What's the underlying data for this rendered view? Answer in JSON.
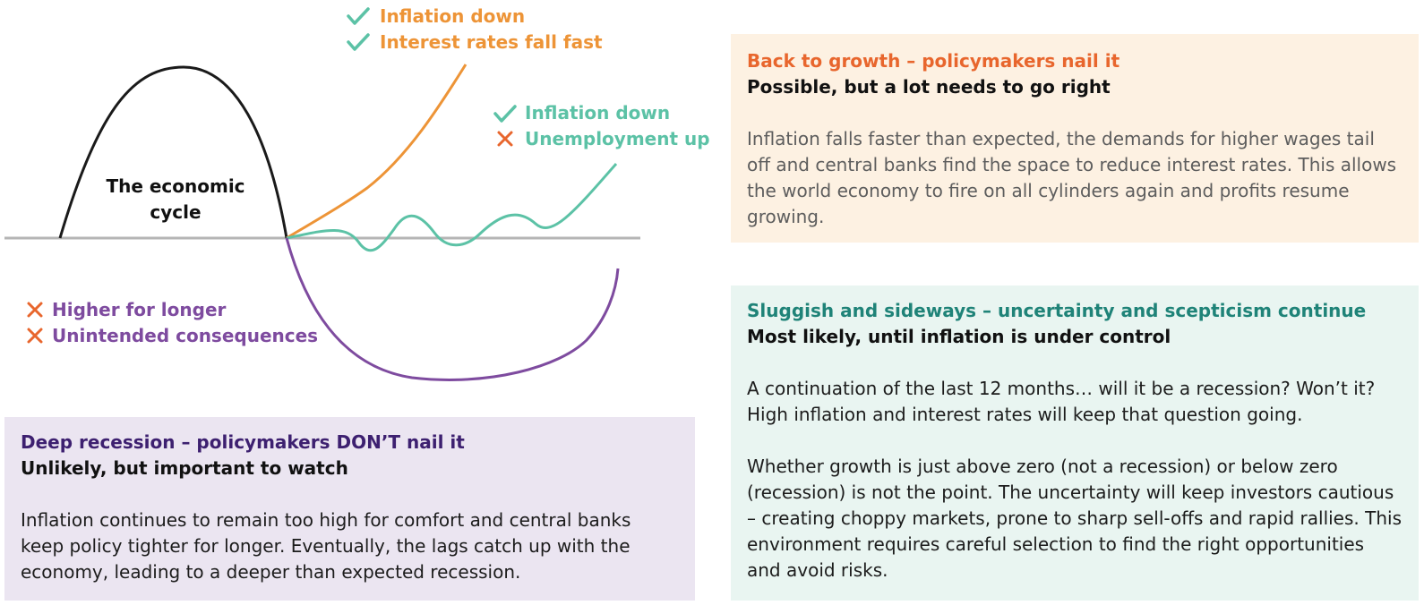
{
  "diagram": {
    "cycle_label": [
      "The economic",
      "cycle"
    ],
    "labels": {
      "growth_1": "Inflation down",
      "growth_2": "Interest rates fall fast",
      "sideways_1": "Inflation down",
      "sideways_2": "Unemployment up",
      "recession_1": "Higher for longer",
      "recession_2": "Unintended consequences"
    },
    "colors": {
      "cycle": "#1a1a1a",
      "baseline": "#b5b5b5",
      "growth": "#ed9437",
      "sideways": "#5cc2a6",
      "recession": "#7e4b9f",
      "check": "#5cc2a6",
      "cross": "#e8662d"
    }
  },
  "growth": {
    "title": "Back to growth – policymakers nail it",
    "subtitle": "Possible, but a lot needs to go right",
    "body": "Inflation falls faster than expected, the demands for higher wages tail off and central banks find the space to reduce interest rates. This allows the world economy to fire on all cylinders again and profits resume growing."
  },
  "sideways": {
    "title": "Sluggish and sideways – uncertainty and scepticism continue",
    "subtitle": "Most likely, until inflation is under control",
    "body1": "A continuation of the last 12 months… will it be a recession? Won’t it? High inflation and interest rates will keep that question going.",
    "body2": "Whether growth is just above zero (not a recession) or below zero (recession) is not the point. The uncertainty will keep investors cautious – creating choppy markets, prone to sharp sell-offs and rapid rallies. This environment requires careful selection to find the right opportunities and avoid risks."
  },
  "recession": {
    "title": "Deep recession – policymakers DON’T nail it",
    "subtitle": "Unlikely, but important to watch",
    "body": "Inflation continues to remain too high for comfort and central banks keep policy tighter for longer. Eventually, the lags catch up with the economy, leading to a deeper than expected recession."
  }
}
